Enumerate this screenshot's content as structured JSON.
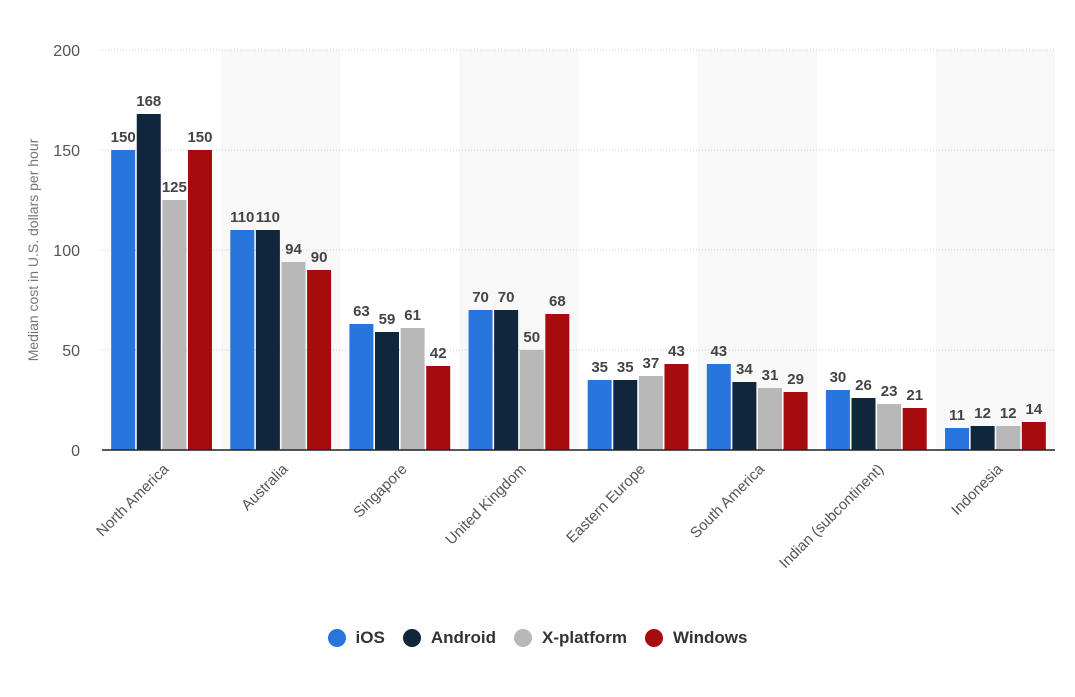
{
  "chart_data": {
    "type": "bar",
    "ylabel": "Median cost in U.S. dollars per hour",
    "xlabel": "",
    "ylim": [
      0,
      200
    ],
    "yticks": [
      0,
      50,
      100,
      150,
      200
    ],
    "grid": true,
    "legend_position": "bottom",
    "categories": [
      "North America",
      "Australia",
      "Singapore",
      "United Kingdom",
      "Eastern Europe",
      "South America",
      "Indian (subcontinent)",
      "Indonesia"
    ],
    "series": [
      {
        "name": "iOS",
        "color": "#2876dd",
        "values": [
          150,
          110,
          63,
          70,
          35,
          43,
          30,
          11
        ]
      },
      {
        "name": "Android",
        "color": "#10263d",
        "values": [
          168,
          110,
          59,
          70,
          35,
          34,
          26,
          12
        ]
      },
      {
        "name": "X-platform",
        "color": "#b8b8b8",
        "values": [
          125,
          94,
          61,
          50,
          37,
          31,
          23,
          12
        ]
      },
      {
        "name": "Windows",
        "color": "#a60b0e",
        "values": [
          150,
          90,
          42,
          68,
          43,
          29,
          21,
          14
        ]
      }
    ]
  }
}
